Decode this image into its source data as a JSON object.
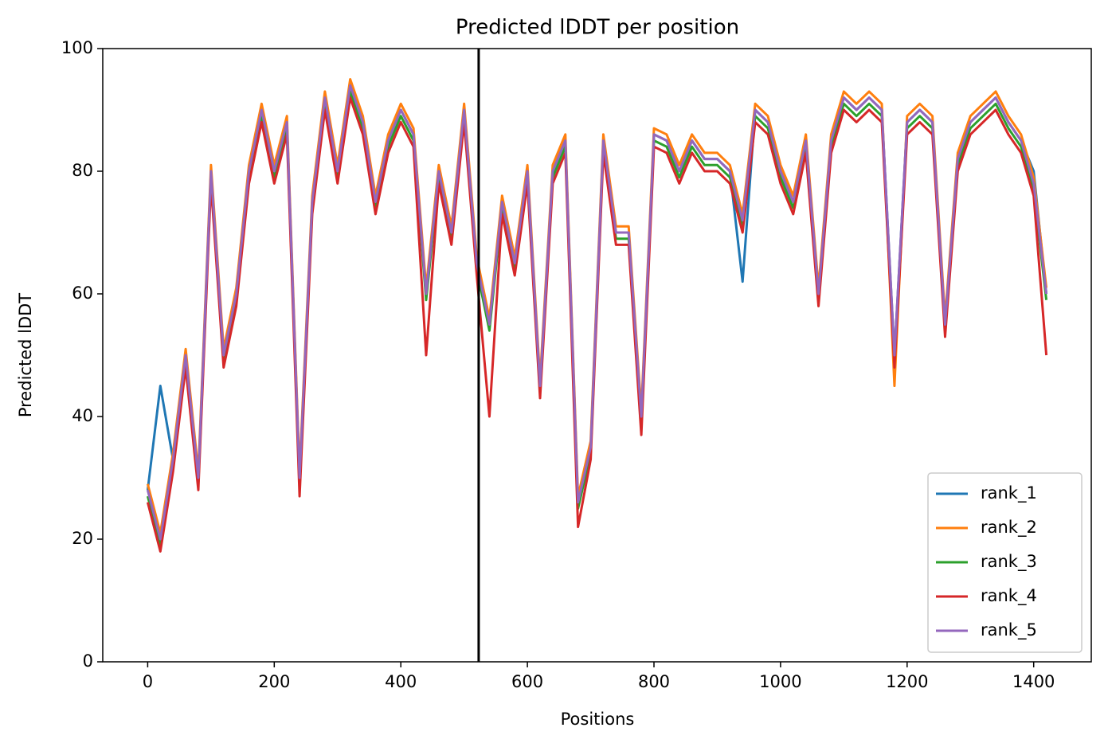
{
  "chart_data": {
    "type": "line",
    "title": "Predicted lDDT per position",
    "x_label": "Positions",
    "y_label": "Predicted lDDT",
    "x": [
      0,
      20,
      40,
      60,
      80,
      100,
      120,
      140,
      160,
      180,
      200,
      220,
      240,
      260,
      280,
      300,
      320,
      340,
      360,
      380,
      400,
      420,
      440,
      460,
      480,
      500,
      520,
      540,
      560,
      580,
      600,
      620,
      640,
      660,
      680,
      700,
      720,
      740,
      760,
      780,
      800,
      820,
      840,
      860,
      880,
      900,
      920,
      940,
      960,
      980,
      1000,
      1020,
      1040,
      1060,
      1080,
      1100,
      1120,
      1140,
      1160,
      1180,
      1200,
      1220,
      1240,
      1260,
      1280,
      1300,
      1320,
      1340,
      1360,
      1380,
      1400,
      1420
    ],
    "series": [
      {
        "name": "rank_1",
        "color": "#1f77b4",
        "values": [
          28,
          45,
          33,
          50,
          30,
          80,
          50,
          60,
          80,
          90,
          80,
          88,
          30,
          75,
          92,
          80,
          94,
          88,
          75,
          85,
          90,
          86,
          60,
          80,
          70,
          90,
          65,
          55,
          75,
          65,
          80,
          45,
          80,
          85,
          26,
          35,
          85,
          70,
          70,
          40,
          86,
          85,
          80,
          85,
          82,
          82,
          80,
          62,
          90,
          88,
          80,
          75,
          85,
          60,
          85,
          92,
          90,
          92,
          90,
          50,
          88,
          90,
          88,
          55,
          82,
          88,
          90,
          92,
          88,
          85,
          80,
          60
        ]
      },
      {
        "name": "rank_2",
        "color": "#ff7f0e",
        "values": [
          29,
          21,
          34,
          51,
          31,
          81,
          51,
          61,
          81,
          91,
          81,
          89,
          31,
          76,
          93,
          81,
          95,
          89,
          76,
          86,
          91,
          87,
          61,
          81,
          71,
          91,
          66,
          56,
          76,
          66,
          81,
          46,
          81,
          86,
          27,
          36,
          86,
          71,
          71,
          41,
          87,
          86,
          81,
          86,
          83,
          83,
          81,
          73,
          91,
          89,
          81,
          76,
          86,
          61,
          86,
          93,
          91,
          93,
          91,
          45,
          89,
          91,
          89,
          56,
          83,
          89,
          91,
          93,
          89,
          86,
          79,
          61
        ]
      },
      {
        "name": "rank_3",
        "color": "#2ca02c",
        "values": [
          27,
          19,
          32,
          49,
          29,
          79,
          49,
          59,
          79,
          89,
          79,
          87,
          29,
          74,
          91,
          79,
          93,
          87,
          74,
          84,
          89,
          85,
          59,
          79,
          69,
          89,
          64,
          54,
          74,
          64,
          79,
          44,
          79,
          84,
          25,
          34,
          84,
          69,
          69,
          39,
          85,
          84,
          79,
          84,
          81,
          81,
          79,
          71,
          89,
          87,
          79,
          74,
          84,
          59,
          84,
          91,
          89,
          91,
          89,
          49,
          87,
          89,
          87,
          54,
          81,
          87,
          89,
          91,
          87,
          84,
          77,
          59
        ]
      },
      {
        "name": "rank_4",
        "color": "#d62728",
        "values": [
          26,
          18,
          31,
          48,
          28,
          78,
          48,
          58,
          78,
          88,
          78,
          86,
          27,
          73,
          90,
          78,
          92,
          86,
          73,
          83,
          88,
          84,
          50,
          78,
          68,
          88,
          63,
          40,
          73,
          63,
          78,
          43,
          78,
          83,
          22,
          33,
          83,
          68,
          68,
          37,
          84,
          83,
          78,
          83,
          80,
          80,
          78,
          70,
          88,
          86,
          78,
          73,
          83,
          58,
          83,
          90,
          88,
          90,
          88,
          48,
          86,
          88,
          86,
          53,
          80,
          86,
          88,
          90,
          86,
          83,
          76,
          50
        ]
      },
      {
        "name": "rank_5",
        "color": "#9467bd",
        "values": [
          28,
          20,
          33,
          50,
          30,
          80,
          50,
          60,
          80,
          90,
          80,
          88,
          30,
          75,
          92,
          80,
          94,
          88,
          75,
          85,
          90,
          86,
          60,
          80,
          70,
          90,
          65,
          55,
          75,
          65,
          80,
          45,
          80,
          85,
          26,
          35,
          85,
          70,
          70,
          40,
          86,
          85,
          80,
          85,
          82,
          82,
          80,
          72,
          90,
          88,
          80,
          75,
          85,
          60,
          85,
          92,
          90,
          92,
          90,
          50,
          88,
          90,
          88,
          55,
          82,
          88,
          90,
          92,
          88,
          85,
          78,
          60
        ]
      }
    ],
    "vlines": [
      523
    ],
    "xlim": [
      -71,
      1491
    ],
    "ylim": [
      0,
      100
    ],
    "xticks": [
      0,
      200,
      400,
      600,
      800,
      1000,
      1200,
      1400
    ],
    "yticks": [
      0,
      20,
      40,
      60,
      80,
      100
    ],
    "grid": false,
    "legend": "lower right"
  }
}
